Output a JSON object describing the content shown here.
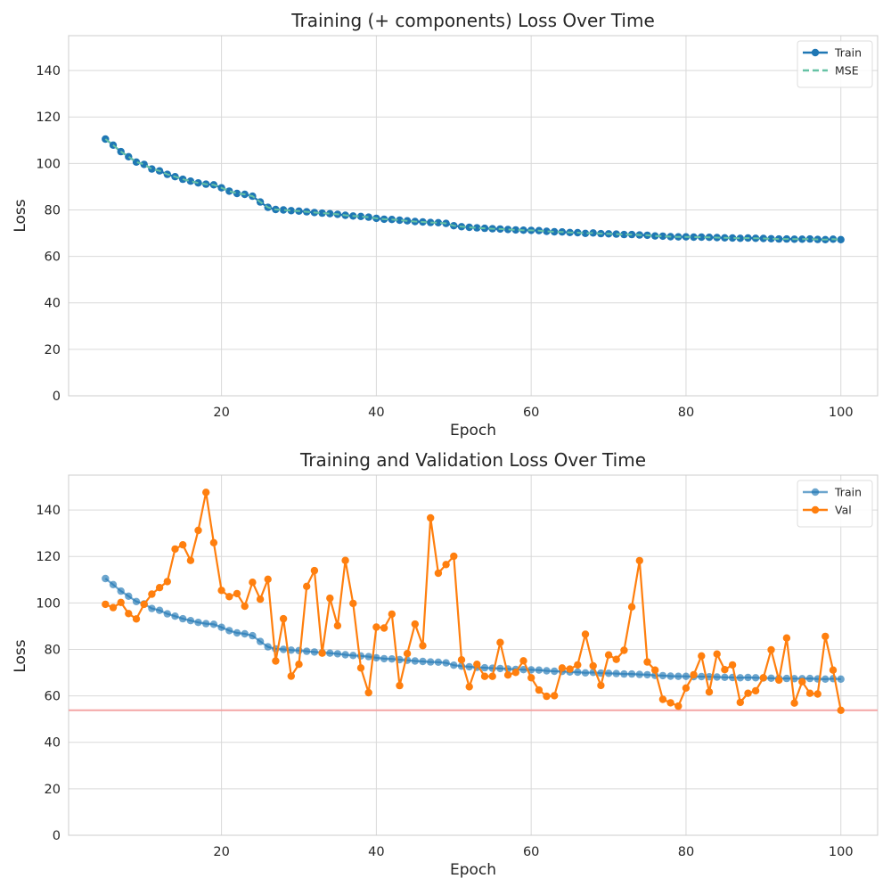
{
  "chart_data": [
    {
      "type": "line",
      "title": "Training (+ components) Loss Over Time",
      "xlabel": "Epoch",
      "ylabel": "Loss",
      "xlim": [
        0.25,
        104.75
      ],
      "ylim": [
        0,
        155
      ],
      "xticks": [
        20,
        40,
        60,
        80,
        100
      ],
      "yticks": [
        0,
        20,
        40,
        60,
        80,
        100,
        120,
        140
      ],
      "grid": true,
      "legend_position": "top-right",
      "x": [
        5,
        6,
        7,
        8,
        9,
        10,
        11,
        12,
        13,
        14,
        15,
        16,
        17,
        18,
        19,
        20,
        21,
        22,
        23,
        24,
        25,
        26,
        27,
        28,
        29,
        30,
        31,
        32,
        33,
        34,
        35,
        36,
        37,
        38,
        39,
        40,
        41,
        42,
        43,
        44,
        45,
        46,
        47,
        48,
        49,
        50,
        51,
        52,
        53,
        54,
        55,
        56,
        57,
        58,
        59,
        60,
        61,
        62,
        63,
        64,
        65,
        66,
        67,
        68,
        69,
        70,
        71,
        72,
        73,
        74,
        75,
        76,
        77,
        78,
        79,
        80,
        81,
        82,
        83,
        84,
        85,
        86,
        87,
        88,
        89,
        90,
        91,
        92,
        93,
        94,
        95,
        96,
        97,
        98,
        99,
        100
      ],
      "series": [
        {
          "name": "Train",
          "color": "#1f77b4",
          "style": "solid-marker",
          "values": [
            110.5,
            107.9,
            105.1,
            102.9,
            100.6,
            99.6,
            97.6,
            96.8,
            95.3,
            94.3,
            93.2,
            92.4,
            91.6,
            91.1,
            90.8,
            89.5,
            88.1,
            87.1,
            86.7,
            85.9,
            83.4,
            81.1,
            80.2,
            80.0,
            79.7,
            79.5,
            79.2,
            78.9,
            78.6,
            78.4,
            78.1,
            77.7,
            77.4,
            77.2,
            76.9,
            76.4,
            76.0,
            75.9,
            75.6,
            75.3,
            75.0,
            74.8,
            74.6,
            74.5,
            74.2,
            73.2,
            72.8,
            72.5,
            72.3,
            72.1,
            71.9,
            71.8,
            71.6,
            71.4,
            71.3,
            71.2,
            71.1,
            70.8,
            70.6,
            70.5,
            70.3,
            70.2,
            69.9,
            70.1,
            69.8,
            69.7,
            69.6,
            69.4,
            69.4,
            69.2,
            69.1,
            68.8,
            68.7,
            68.5,
            68.4,
            68.4,
            68.3,
            68.3,
            68.2,
            68.1,
            68.0,
            67.9,
            67.8,
            67.9,
            67.8,
            67.7,
            67.6,
            67.5,
            67.5,
            67.4,
            67.4,
            67.5,
            67.3,
            67.2,
            67.4,
            67.2
          ]
        },
        {
          "name": "MSE",
          "color": "#66c2a5",
          "style": "dashed",
          "values": [
            110.5,
            107.9,
            105.1,
            102.9,
            100.6,
            99.6,
            97.6,
            96.8,
            95.3,
            94.3,
            93.2,
            92.4,
            91.6,
            91.1,
            90.8,
            89.5,
            88.1,
            87.1,
            86.7,
            85.9,
            83.4,
            81.1,
            80.2,
            80.0,
            79.7,
            79.5,
            79.2,
            78.9,
            78.6,
            78.4,
            78.1,
            77.7,
            77.4,
            77.2,
            76.9,
            76.4,
            76.0,
            75.9,
            75.6,
            75.3,
            75.0,
            74.8,
            74.6,
            74.5,
            74.2,
            73.2,
            72.8,
            72.5,
            72.3,
            72.1,
            71.9,
            71.8,
            71.6,
            71.4,
            71.3,
            71.2,
            71.1,
            70.8,
            70.6,
            70.5,
            70.3,
            70.2,
            69.9,
            70.1,
            69.8,
            69.7,
            69.6,
            69.4,
            69.4,
            69.2,
            69.1,
            68.8,
            68.7,
            68.5,
            68.4,
            68.4,
            68.3,
            68.3,
            68.2,
            68.1,
            68.0,
            67.9,
            67.8,
            67.9,
            67.8,
            67.7,
            67.6,
            67.5,
            67.5,
            67.4,
            67.4,
            67.5,
            67.3,
            67.2,
            67.4,
            67.2
          ]
        }
      ]
    },
    {
      "type": "line",
      "title": "Training and Validation Loss Over Time",
      "xlabel": "Epoch",
      "ylabel": "Loss",
      "xlim": [
        0.25,
        104.75
      ],
      "ylim": [
        0,
        155
      ],
      "xticks": [
        20,
        40,
        60,
        80,
        100
      ],
      "yticks": [
        0,
        20,
        40,
        60,
        80,
        100,
        120,
        140
      ],
      "grid": true,
      "legend_position": "top-right",
      "hline": {
        "y": 53.8,
        "color": "#f4a5a5"
      },
      "x": [
        5,
        6,
        7,
        8,
        9,
        10,
        11,
        12,
        13,
        14,
        15,
        16,
        17,
        18,
        19,
        20,
        21,
        22,
        23,
        24,
        25,
        26,
        27,
        28,
        29,
        30,
        31,
        32,
        33,
        34,
        35,
        36,
        37,
        38,
        39,
        40,
        41,
        42,
        43,
        44,
        45,
        46,
        47,
        48,
        49,
        50,
        51,
        52,
        53,
        54,
        55,
        56,
        57,
        58,
        59,
        60,
        61,
        62,
        63,
        64,
        65,
        66,
        67,
        68,
        69,
        70,
        71,
        72,
        73,
        74,
        75,
        76,
        77,
        78,
        79,
        80,
        81,
        82,
        83,
        84,
        85,
        86,
        87,
        88,
        89,
        90,
        91,
        92,
        93,
        94,
        95,
        96,
        97,
        98,
        99,
        100
      ],
      "series": [
        {
          "name": "Train",
          "color": "#1f77b4",
          "style": "faded-marker",
          "values": [
            110.5,
            107.9,
            105.1,
            102.9,
            100.6,
            99.6,
            97.6,
            96.8,
            95.3,
            94.3,
            93.2,
            92.4,
            91.6,
            91.1,
            90.8,
            89.5,
            88.1,
            87.1,
            86.7,
            85.9,
            83.4,
            81.1,
            80.2,
            80.0,
            79.7,
            79.5,
            79.2,
            78.9,
            78.6,
            78.4,
            78.1,
            77.7,
            77.4,
            77.2,
            76.9,
            76.4,
            76.0,
            75.9,
            75.6,
            75.3,
            75.0,
            74.8,
            74.6,
            74.5,
            74.2,
            73.2,
            72.8,
            72.5,
            72.3,
            72.1,
            71.9,
            71.8,
            71.6,
            71.4,
            71.3,
            71.2,
            71.1,
            70.8,
            70.6,
            70.5,
            70.3,
            70.2,
            69.9,
            70.1,
            69.8,
            69.7,
            69.6,
            69.4,
            69.4,
            69.2,
            69.1,
            68.8,
            68.7,
            68.5,
            68.4,
            68.4,
            68.3,
            68.3,
            68.2,
            68.1,
            68.0,
            67.9,
            67.8,
            67.9,
            67.8,
            67.7,
            67.6,
            67.5,
            67.5,
            67.4,
            67.4,
            67.5,
            67.3,
            67.2,
            67.4,
            67.2
          ]
        },
        {
          "name": "Val",
          "color": "#ff7f0e",
          "style": "solid-marker",
          "values": [
            99.4,
            98.0,
            100.2,
            95.4,
            93.1,
            99.4,
            103.8,
            106.6,
            109.2,
            123.2,
            125.0,
            118.3,
            131.2,
            147.6,
            125.9,
            105.4,
            102.7,
            104.0,
            98.6,
            108.9,
            101.6,
            110.2,
            75.0,
            93.2,
            68.5,
            73.6,
            107.1,
            113.9,
            78.4,
            102.0,
            90.2,
            118.3,
            99.8,
            72.0,
            61.4,
            89.6,
            89.2,
            95.2,
            64.4,
            78.2,
            90.9,
            81.6,
            136.6,
            112.8,
            116.5,
            120.1,
            75.5,
            63.9,
            73.6,
            68.4,
            68.4,
            83.0,
            69.0,
            70.1,
            75.1,
            67.8,
            62.5,
            59.8,
            60.1,
            72.0,
            71.5,
            73.3,
            86.5,
            72.9,
            64.5,
            77.6,
            75.7,
            79.6,
            98.3,
            118.2,
            74.6,
            71.1,
            58.5,
            57.0,
            55.6,
            63.4,
            69.1,
            77.2,
            61.7,
            78.0,
            71.3,
            73.3,
            57.2,
            61.1,
            62.2,
            67.8,
            79.8,
            66.8,
            84.9,
            56.9,
            66.1,
            61.1,
            60.8,
            85.6,
            71.1,
            53.8
          ]
        }
      ]
    }
  ]
}
